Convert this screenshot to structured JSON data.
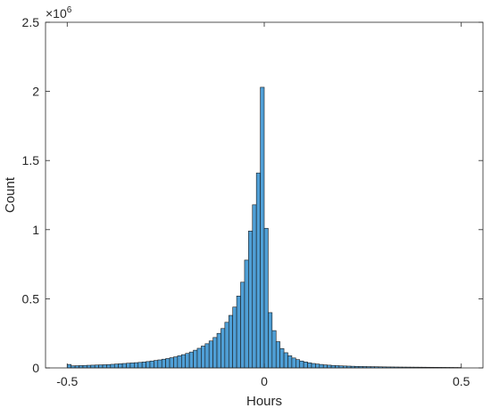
{
  "chart_data": {
    "type": "bar",
    "title": "",
    "xlabel": "Hours",
    "ylabel": "Count",
    "bin_width": 0.01,
    "xlim": [
      -0.555,
      0.555
    ],
    "ylim": [
      0,
      2500000
    ],
    "y_exponent_label": "×10",
    "y_exponent_power": "6",
    "xticks": [
      -0.5,
      0,
      0.5
    ],
    "xtick_labels": [
      "-0.5",
      "0",
      "0.5"
    ],
    "yticks": [
      0,
      500000,
      1000000,
      1500000,
      2000000,
      2500000
    ],
    "ytick_labels": [
      "0",
      "0.5",
      "1",
      "1.5",
      "2",
      "2.5"
    ],
    "bar_color": "#4f9fd6",
    "edge_color": "#1a1a1a",
    "bin_centers": [
      -0.495,
      -0.485,
      -0.475,
      -0.465,
      -0.455,
      -0.445,
      -0.435,
      -0.425,
      -0.415,
      -0.405,
      -0.395,
      -0.385,
      -0.375,
      -0.365,
      -0.355,
      -0.345,
      -0.335,
      -0.325,
      -0.315,
      -0.305,
      -0.295,
      -0.285,
      -0.275,
      -0.265,
      -0.255,
      -0.245,
      -0.235,
      -0.225,
      -0.215,
      -0.205,
      -0.195,
      -0.185,
      -0.175,
      -0.165,
      -0.155,
      -0.145,
      -0.135,
      -0.125,
      -0.115,
      -0.105,
      -0.095,
      -0.085,
      -0.075,
      -0.065,
      -0.055,
      -0.045,
      -0.035,
      -0.025,
      -0.015,
      -0.005,
      0.005,
      0.015,
      0.025,
      0.035,
      0.045,
      0.055,
      0.065,
      0.075,
      0.085,
      0.095,
      0.105,
      0.115,
      0.125,
      0.135,
      0.145,
      0.155,
      0.165,
      0.175,
      0.185,
      0.195,
      0.205,
      0.215,
      0.225,
      0.235,
      0.245,
      0.255,
      0.265,
      0.275,
      0.285,
      0.295,
      0.305,
      0.315,
      0.325,
      0.335,
      0.345,
      0.355,
      0.365,
      0.375,
      0.385,
      0.395,
      0.405,
      0.415,
      0.425,
      0.435,
      0.445,
      0.455,
      0.465,
      0.475,
      0.485,
      0.495
    ],
    "values": [
      25000,
      15000,
      16000,
      17000,
      18000,
      19000,
      20000,
      21000,
      22000,
      23000,
      24000,
      26000,
      28000,
      30000,
      32000,
      34000,
      36000,
      38000,
      40000,
      43000,
      46000,
      50000,
      54000,
      58000,
      63000,
      68000,
      74000,
      80000,
      88000,
      96000,
      105000,
      115000,
      128000,
      142000,
      158000,
      175000,
      195000,
      220000,
      250000,
      285000,
      330000,
      380000,
      440000,
      520000,
      620000,
      780000,
      990000,
      1180000,
      1410000,
      2030000,
      1010000,
      400000,
      270000,
      190000,
      140000,
      110000,
      88000,
      72000,
      60000,
      50000,
      43000,
      37000,
      32000,
      28000,
      25000,
      22000,
      20000,
      18000,
      16500,
      15000,
      14000,
      13000,
      12000,
      11000,
      10500,
      10000,
      9500,
      9000,
      8500,
      8000,
      7500,
      7000,
      6800,
      6500,
      6200,
      6000,
      5800,
      5600,
      5400,
      5200,
      5000,
      4800,
      4600,
      4400,
      4200,
      4000,
      3800,
      3600,
      3400,
      3200
    ]
  }
}
